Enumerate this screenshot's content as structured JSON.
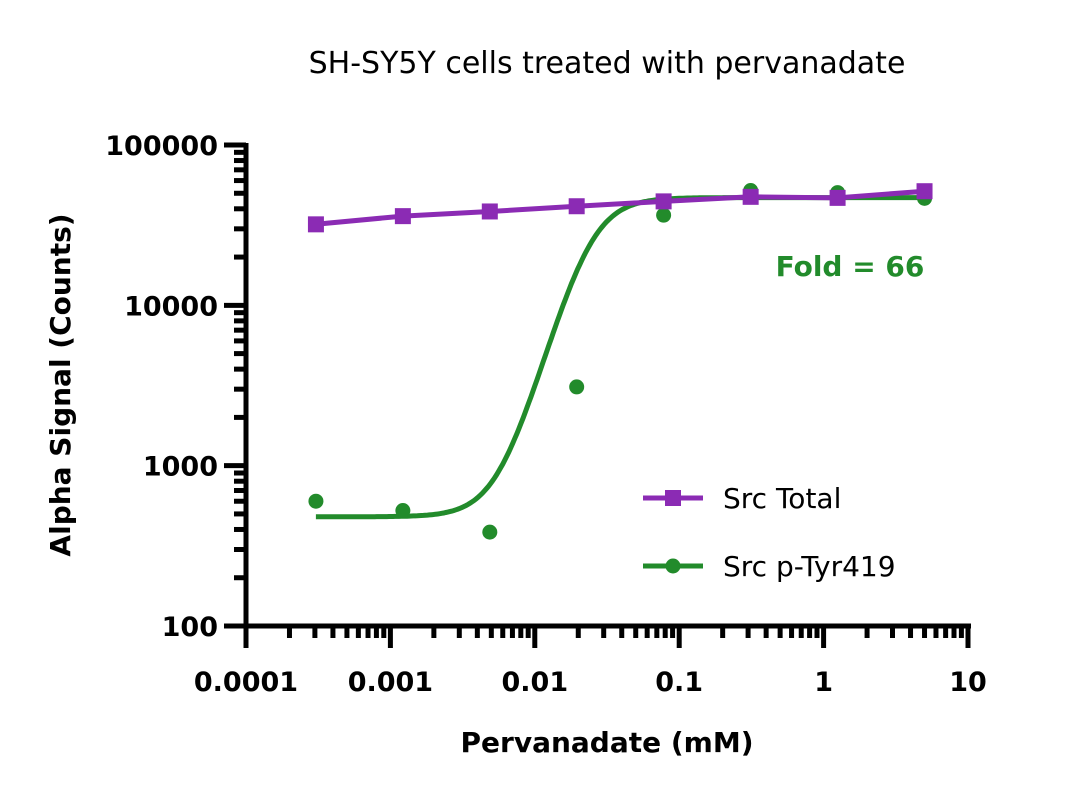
{
  "chart_data": {
    "type": "scatter",
    "title": "SH-SY5Y cells treated with pervanadate",
    "xlabel": "Pervanadate (mM)",
    "ylabel": "Alpha Signal (Counts)",
    "xscale": "log",
    "yscale": "log",
    "xlim": [
      0.0001,
      10
    ],
    "ylim": [
      100,
      100000
    ],
    "xticks": [
      0.0001,
      0.001,
      0.01,
      0.1,
      1,
      10
    ],
    "xtick_labels": [
      "0.0001",
      "0.001",
      "0.01",
      "0.1",
      "1",
      "10"
    ],
    "yticks": [
      100,
      1000,
      10000,
      100000
    ],
    "ytick_labels": [
      "100",
      "1000",
      "10000",
      "100000"
    ],
    "grid": false,
    "legend_position": "bottom-right",
    "annotation": {
      "text": "Fold = 66",
      "color": "#228B2B"
    },
    "series": [
      {
        "name": "Src Total",
        "color": "#8B2BB4",
        "marker": "square",
        "line": "connected",
        "x": [
          0.000305,
          0.00122,
          0.00488,
          0.0195,
          0.078,
          0.3125,
          1.25,
          5
        ],
        "y": [
          32000,
          36000,
          38500,
          41500,
          44500,
          47500,
          46800,
          51500
        ]
      },
      {
        "name": "Src p-Tyr419",
        "color": "#228B2B",
        "marker": "circle",
        "line": "sigmoidal fit",
        "x": [
          0.000305,
          0.00122,
          0.00488,
          0.0195,
          0.078,
          0.3125,
          1.25,
          5
        ],
        "y": [
          600,
          525,
          385,
          3100,
          36500,
          52000,
          50500,
          46500
        ],
        "fit": {
          "bottom": 480,
          "top": 47000,
          "ec50": 0.024,
          "hill": 3.2
        }
      }
    ]
  }
}
